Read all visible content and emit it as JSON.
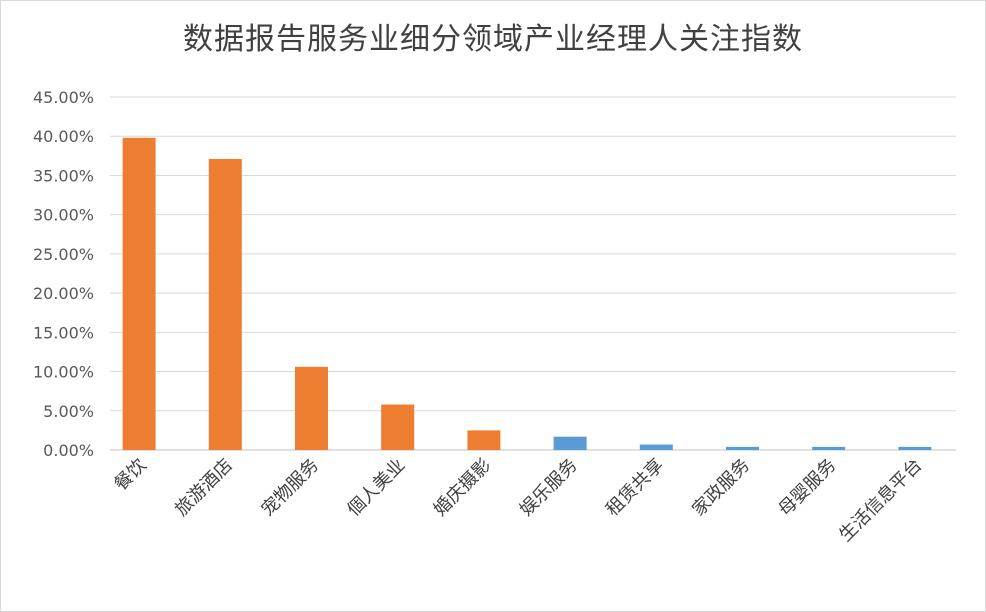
{
  "chart_data": {
    "type": "bar",
    "title": "数据报告服务业细分领域产业经理人关注指数",
    "xlabel": "",
    "ylabel": "",
    "ylim": [
      0,
      45
    ],
    "ytick_labels": [
      "0.00%",
      "5.00%",
      "10.00%",
      "15.00%",
      "20.00%",
      "25.00%",
      "30.00%",
      "35.00%",
      "40.00%",
      "45.00%"
    ],
    "grid": true,
    "legend": "none",
    "categories": [
      "餐饮",
      "旅游酒店",
      "宠物服务",
      "個人美业",
      "婚庆摄影",
      "娱乐服务",
      "租赁共享",
      "家政服务",
      "母婴服务",
      "生活信息平台"
    ],
    "values": [
      39.8,
      37.1,
      10.6,
      5.8,
      2.5,
      1.7,
      0.7,
      0.4,
      0.4,
      0.4
    ],
    "colors": [
      "#ed7d31",
      "#ed7d31",
      "#ed7d31",
      "#ed7d31",
      "#ed7d31",
      "#5b9bd5",
      "#5b9bd5",
      "#5b9bd5",
      "#5b9bd5",
      "#5b9bd5"
    ]
  }
}
